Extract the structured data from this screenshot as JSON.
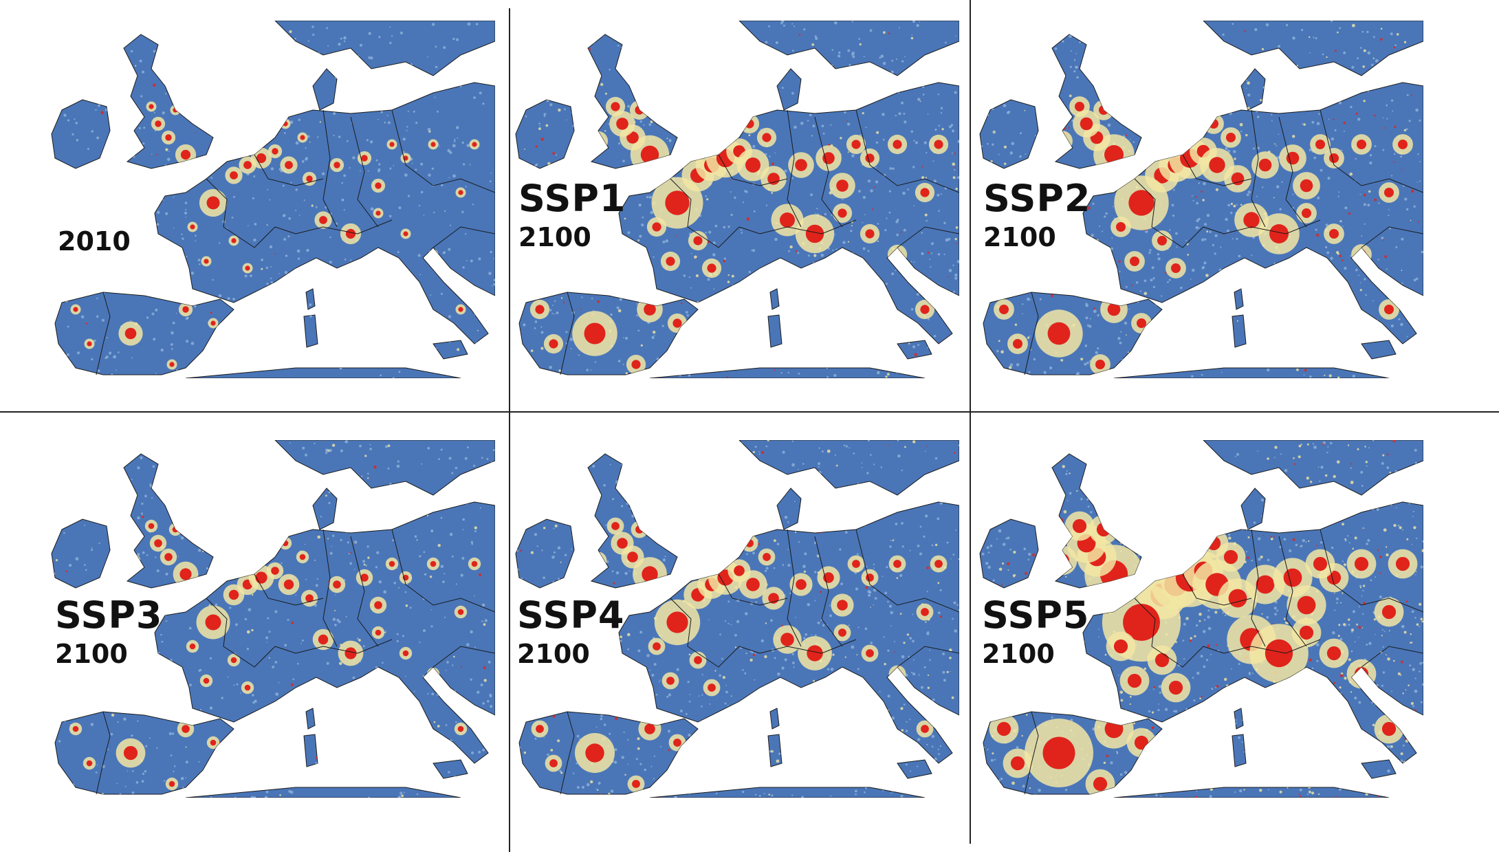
{
  "colors": {
    "sea": "#ffffff",
    "land": "#4a76b8",
    "low": "#8fb3d9",
    "mid": "#f2e6a3",
    "high": "#e0241b",
    "border": "#1a1a1a"
  },
  "panels": [
    {
      "id": "p2010",
      "scenario": "",
      "year": "2010",
      "intensity": 0.15
    },
    {
      "id": "pssp1",
      "scenario": "SSP1",
      "year": "2100",
      "intensity": 0.55
    },
    {
      "id": "pssp2",
      "scenario": "SSP2",
      "year": "2100",
      "intensity": 0.6
    },
    {
      "id": "pssp3",
      "scenario": "SSP3",
      "year": "2100",
      "intensity": 0.25
    },
    {
      "id": "pssp4",
      "scenario": "SSP4",
      "year": "2100",
      "intensity": 0.45
    },
    {
      "id": "pssp5",
      "scenario": "SSP5",
      "year": "2100",
      "intensity": 1.0
    }
  ]
}
